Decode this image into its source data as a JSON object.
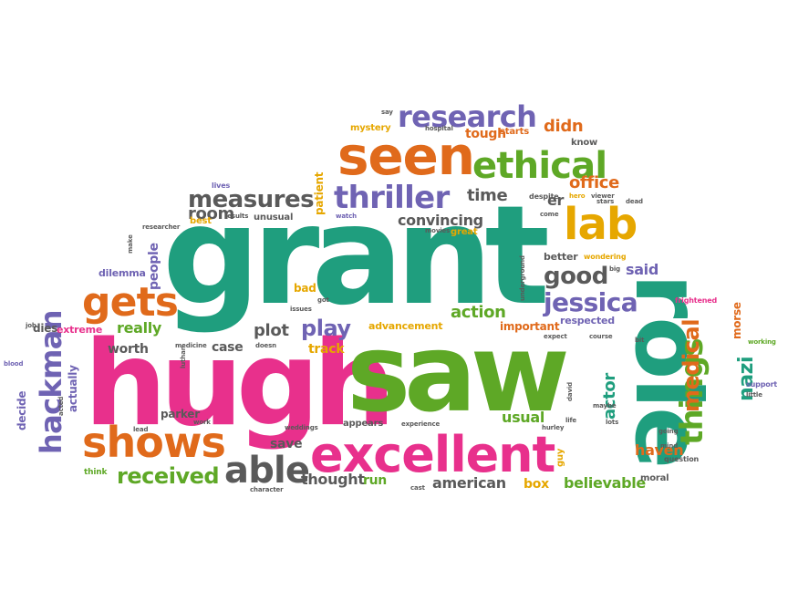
{
  "words": {
    "grant": "grant",
    "saw": "saw",
    "hugh": "hugh",
    "role": "role",
    "excellent": "excellent",
    "seen": "seen",
    "ethical": "ethical",
    "research": "research",
    "thriller": "thriller",
    "lab": "lab",
    "things": "things",
    "gets": "gets",
    "shows": "shows",
    "able": "able",
    "hackman": "hackman",
    "measures": "measures",
    "jessica": "jessica",
    "good": "good",
    "medical": "medical",
    "received": "received",
    "play": "play",
    "convincing": "convincing",
    "action": "action",
    "room": "room",
    "time": "time",
    "plot": "plot",
    "office": "office",
    "actor": "actor",
    "nazi": "nazi",
    "usual": "usual",
    "believable": "believable",
    "american": "american",
    "thought": "thought",
    "haven": "haven",
    "said": "said",
    "didn": "didn",
    "tough": "tough",
    "people": "people",
    "really": "really",
    "worth": "worth",
    "case": "case",
    "track": "track",
    "save": "save",
    "run": "run",
    "box": "box",
    "parker": "parker",
    "actually": "actually",
    "decide": "decide",
    "dies": "dies",
    "extreme": "extreme",
    "dilemma": "dilemma",
    "bad": "bad",
    "er": "er",
    "better": "better",
    "important": "important",
    "respected": "respected",
    "advancement": "advancement",
    "morse": "morse",
    "unusual": "unusual",
    "best": "best",
    "patient": "patient",
    "mystery": "mystery",
    "starts": "starts",
    "know": "know",
    "great": "great",
    "appears": "appears",
    "guy": "guy",
    "moral": "moral",
    "think": "think",
    "lives": "lives",
    "researcher": "researcher",
    "results": "results",
    "watch": "watch",
    "movies": "movies",
    "despite": "despite",
    "hero": "hero",
    "come": "come",
    "stars": "stars",
    "dead": "dead",
    "wondering": "wondering",
    "big": "big",
    "frightened": "frightened",
    "support": "support",
    "working": "working",
    "little": "little",
    "blood": "blood",
    "job": "job",
    "medicine": "medicine",
    "doesn": "doesn",
    "issues": "issues",
    "got": "got",
    "luthan": "luthan",
    "acted": "acted",
    "lead": "lead",
    "work": "work",
    "weddings": "weddings",
    "experience": "experience",
    "hurley": "hurley",
    "life": "life",
    "lots": "lots",
    "going": "going",
    "mind": "mind",
    "question": "question",
    "character": "character",
    "cast": "cast",
    "make": "make",
    "say": "say",
    "hospital": "hospital",
    "underground": "underground",
    "expect": "expect",
    "course": "course",
    "bit": "bit",
    "maybe": "maybe",
    "david": "david",
    "viewer": "viewer"
  },
  "colors": {
    "teal": "#1f9e7e",
    "pink": "#e8308c",
    "orange": "#e06a1b",
    "green": "#5ea826",
    "purple": "#6f63b3",
    "gold": "#e6a700",
    "gray": "#5a5a5a"
  }
}
